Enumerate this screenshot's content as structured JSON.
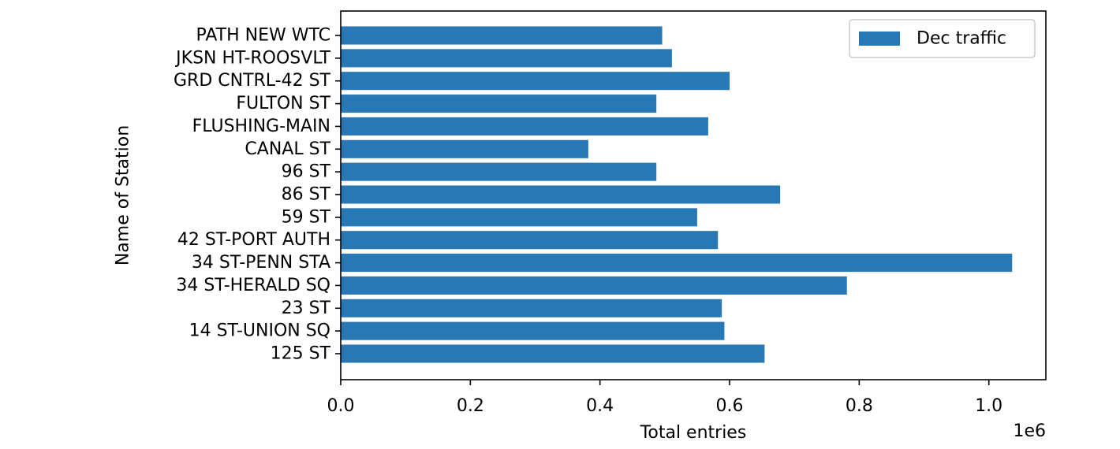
{
  "chart_data": {
    "type": "bar",
    "orientation": "horizontal",
    "categories": [
      "125 ST",
      "14 ST-UNION SQ",
      "23 ST",
      "34 ST-HERALD SQ",
      "34 ST-PENN STA",
      "42 ST-PORT AUTH",
      "59 ST",
      "86 ST",
      "96 ST",
      "CANAL ST",
      "FLUSHING-MAIN",
      "FULTON ST",
      "GRD CNTRL-42 ST",
      "JKSN HT-ROOSVLT",
      "PATH NEW WTC"
    ],
    "series": [
      {
        "name": "Dec traffic",
        "values": [
          654000,
          592000,
          588000,
          781000,
          1036000,
          582000,
          550000,
          678000,
          487000,
          382000,
          567000,
          487000,
          600000,
          511000,
          496000
        ]
      }
    ],
    "xlabel": "Total entries",
    "ylabel": "Name of Station",
    "x_ticks": [
      "0.0",
      "0.2",
      "0.4",
      "0.6",
      "0.8",
      "1.0"
    ],
    "x_tick_values": [
      0,
      200000,
      400000,
      600000,
      800000,
      1000000
    ],
    "x_offset_text": "1e6",
    "xlim": [
      0,
      1088000
    ],
    "grid": false,
    "legend_position": "upper right",
    "colors": {
      "bar": "#2878b5",
      "axis": "#000000"
    }
  }
}
